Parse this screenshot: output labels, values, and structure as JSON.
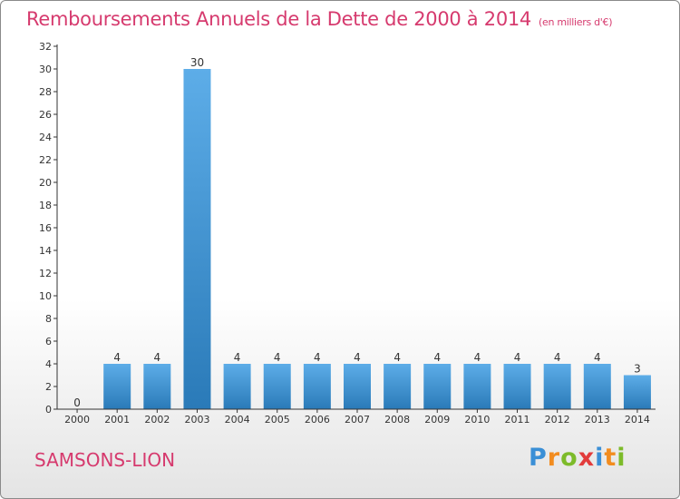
{
  "header": {
    "title": "Remboursements Annuels de la Dette de 2000 à 2014",
    "subtitle": "(en milliers d'€)"
  },
  "commune": "SAMSONS-LION",
  "logo": {
    "letters": [
      {
        "ch": "P",
        "color": "#3a8fd6"
      },
      {
        "ch": "r",
        "color": "#f28c1f"
      },
      {
        "ch": "o",
        "color": "#7dbb2a"
      },
      {
        "ch": "x",
        "color": "#e23b3b"
      },
      {
        "ch": "i",
        "color": "#3a8fd6"
      },
      {
        "ch": "t",
        "color": "#f28c1f"
      },
      {
        "ch": "i",
        "color": "#7dbb2a"
      }
    ]
  },
  "chart_data": {
    "type": "bar",
    "categories": [
      "2000",
      "2001",
      "2002",
      "2003",
      "2004",
      "2005",
      "2006",
      "2007",
      "2008",
      "2009",
      "2010",
      "2011",
      "2012",
      "2013",
      "2014"
    ],
    "values": [
      0,
      4,
      4,
      30,
      4,
      4,
      4,
      4,
      4,
      4,
      4,
      4,
      4,
      4,
      3
    ],
    "data_labels": [
      "0",
      "4",
      "4",
      "30",
      "4",
      "4",
      "4",
      "4",
      "4",
      "4",
      "4",
      "4",
      "4",
      "4",
      "3"
    ],
    "title": "Remboursements Annuels de la Dette de 2000 à 2014",
    "xlabel": "",
    "ylabel": "",
    "ylim": [
      0,
      32
    ],
    "yticks": [
      0,
      2,
      4,
      6,
      8,
      10,
      12,
      14,
      16,
      18,
      20,
      22,
      24,
      26,
      28,
      30,
      32
    ],
    "grid": false,
    "colors": {
      "bar_top": "#5dade8",
      "bar_bottom": "#2a7ab8",
      "axis": "#333333"
    }
  }
}
